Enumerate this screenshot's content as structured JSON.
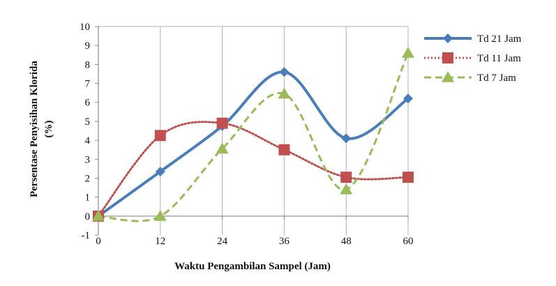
{
  "chart_data": {
    "type": "line",
    "smooth": true,
    "x": [
      0,
      12,
      24,
      36,
      48,
      60
    ],
    "x_tick_labels": [
      "0",
      "12",
      "24",
      "36",
      "48",
      "60"
    ],
    "y_tick_labels": [
      "-1",
      "0",
      "1",
      "2",
      "3",
      "4",
      "5",
      "6",
      "7",
      "8",
      "9",
      "10"
    ],
    "xlim": [
      0,
      60
    ],
    "ylim": [
      -1,
      10
    ],
    "xlabel": "Waktu Pengambilan Sampel (Jam)",
    "ylabel_line1": "Persentase Penyisihan Klorida",
    "ylabel_line2": "(%)",
    "grid": "vertical",
    "legend_position": "right",
    "series": [
      {
        "name": "Td 21 Jam",
        "values": [
          0,
          2.35,
          4.75,
          7.6,
          4.1,
          6.2
        ],
        "color": "#4a7ebb",
        "marker": "diamond",
        "line_style": "solid"
      },
      {
        "name": "Td 11 Jam",
        "values": [
          0,
          4.25,
          4.9,
          3.5,
          2.05,
          2.05
        ],
        "color": "#c0504d",
        "marker": "square",
        "line_style": "dotted"
      },
      {
        "name": "Td 7 Jam",
        "values": [
          0,
          0,
          3.55,
          6.45,
          1.4,
          8.6
        ],
        "color": "#9bbb59",
        "marker": "triangle",
        "line_style": "dashed"
      }
    ]
  }
}
